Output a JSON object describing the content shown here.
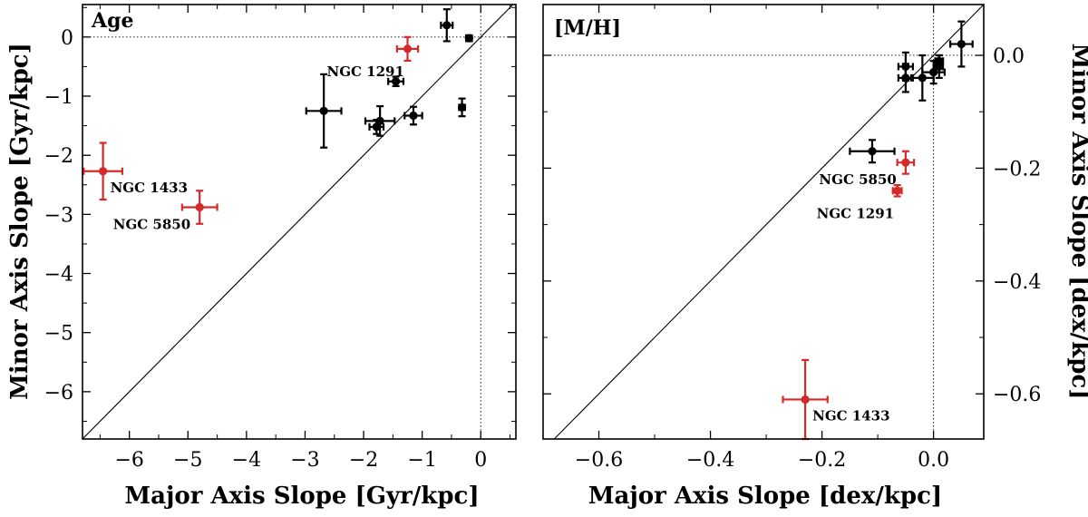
{
  "chart_data": [
    {
      "type": "scatter",
      "panel_label": "Age",
      "xlabel": "Major Axis Slope [Gyr/kpc]",
      "ylabel": "Minor Axis Slope [Gyr/kpc]",
      "xlim": [
        -6.8,
        0.6
      ],
      "ylim": [
        -6.8,
        0.55
      ],
      "xticks": [
        -6,
        -5,
        -4,
        -3,
        -2,
        -1,
        0
      ],
      "yticks": [
        -6,
        -5,
        -4,
        -3,
        -2,
        -1,
        0
      ],
      "xtick_labels": [
        "−6",
        "−5",
        "−4",
        "−3",
        "−2",
        "−1",
        "0"
      ],
      "ytick_labels": [
        "−6",
        "−5",
        "−4",
        "−3",
        "−2",
        "−1",
        "0"
      ],
      "ytick_side": "left",
      "reference_lines": [
        "one-to-one diagonal",
        "x = 0 dotted",
        "y = 0 dotted"
      ],
      "points": [
        {
          "x": -0.58,
          "y": 0.2,
          "xerr": 0.1,
          "yerr": 0.27,
          "color": "#000000",
          "label": ""
        },
        {
          "x": -0.2,
          "y": -0.02,
          "xerr": 0.05,
          "yerr": 0.05,
          "color": "#000000",
          "label": ""
        },
        {
          "x": -1.25,
          "y": -0.2,
          "xerr": 0.18,
          "yerr": 0.2,
          "color": "#d42a2a",
          "label": "NGC 1291"
        },
        {
          "x": -1.45,
          "y": -0.75,
          "xerr": 0.13,
          "yerr": 0.08,
          "color": "#000000",
          "label": ""
        },
        {
          "x": -2.68,
          "y": -1.25,
          "xerr": 0.3,
          "yerr": 0.62,
          "color": "#000000",
          "label": ""
        },
        {
          "x": -1.72,
          "y": -1.42,
          "xerr": 0.25,
          "yerr": 0.25,
          "color": "#000000",
          "label": ""
        },
        {
          "x": -1.78,
          "y": -1.52,
          "xerr": 0.12,
          "yerr": 0.12,
          "color": "#000000",
          "label": ""
        },
        {
          "x": -1.15,
          "y": -1.33,
          "xerr": 0.15,
          "yerr": 0.15,
          "color": "#000000",
          "label": ""
        },
        {
          "x": -0.32,
          "y": -1.19,
          "xerr": 0.05,
          "yerr": 0.15,
          "color": "#000000",
          "label": ""
        },
        {
          "x": -6.45,
          "y": -2.27,
          "xerr": 0.33,
          "yerr": 0.48,
          "color": "#d42a2a",
          "label": "NGC 1433"
        },
        {
          "x": -4.8,
          "y": -2.88,
          "xerr": 0.3,
          "yerr": 0.28,
          "color": "#d42a2a",
          "label": "NGC 5850"
        }
      ]
    },
    {
      "type": "scatter",
      "panel_label": "[M/H]",
      "xlabel": "Major Axis Slope [dex/kpc]",
      "ylabel": "Minor Axis Slope [dex/kpc]",
      "xlim": [
        -0.7,
        0.09
      ],
      "ylim": [
        -0.68,
        0.09
      ],
      "xticks": [
        -0.6,
        -0.4,
        -0.2,
        0.0
      ],
      "yticks": [
        -0.6,
        -0.4,
        -0.2,
        0.0
      ],
      "xtick_labels": [
        "−0.6",
        "−0.4",
        "−0.2",
        "0.0"
      ],
      "ytick_labels": [
        "−0.6",
        "−0.4",
        "−0.2",
        "0.0"
      ],
      "ytick_side": "right",
      "reference_lines": [
        "one-to-one diagonal",
        "x = 0 dotted",
        "y = 0 dotted"
      ],
      "points": [
        {
          "x": 0.05,
          "y": 0.02,
          "xerr": 0.02,
          "yerr": 0.04,
          "color": "#000000",
          "label": ""
        },
        {
          "x": 0.01,
          "y": -0.01,
          "xerr": 0.007,
          "yerr": 0.01,
          "color": "#000000",
          "label": ""
        },
        {
          "x": 0.01,
          "y": -0.02,
          "xerr": 0.007,
          "yerr": 0.02,
          "color": "#000000",
          "label": ""
        },
        {
          "x": -0.05,
          "y": -0.02,
          "xerr": 0.013,
          "yerr": 0.025,
          "color": "#000000",
          "label": ""
        },
        {
          "x": -0.05,
          "y": -0.04,
          "xerr": 0.013,
          "yerr": 0.025,
          "color": "#000000",
          "label": ""
        },
        {
          "x": -0.02,
          "y": -0.04,
          "xerr": 0.02,
          "yerr": 0.04,
          "color": "#000000",
          "label": ""
        },
        {
          "x": 0.0,
          "y": -0.03,
          "xerr": 0.02,
          "yerr": 0.02,
          "color": "#000000",
          "label": ""
        },
        {
          "x": -0.11,
          "y": -0.17,
          "xerr": 0.04,
          "yerr": 0.02,
          "color": "#000000",
          "label": ""
        },
        {
          "x": -0.05,
          "y": -0.19,
          "xerr": 0.015,
          "yerr": 0.02,
          "color": "#d42a2a",
          "label": "NGC 5850"
        },
        {
          "x": -0.065,
          "y": -0.24,
          "xerr": 0.008,
          "yerr": 0.01,
          "color": "#d42a2a",
          "label": "NGC 1291"
        },
        {
          "x": -0.23,
          "y": -0.61,
          "xerr": 0.04,
          "yerr": 0.07,
          "color": "#d42a2a",
          "label": "NGC 1433"
        }
      ]
    }
  ]
}
